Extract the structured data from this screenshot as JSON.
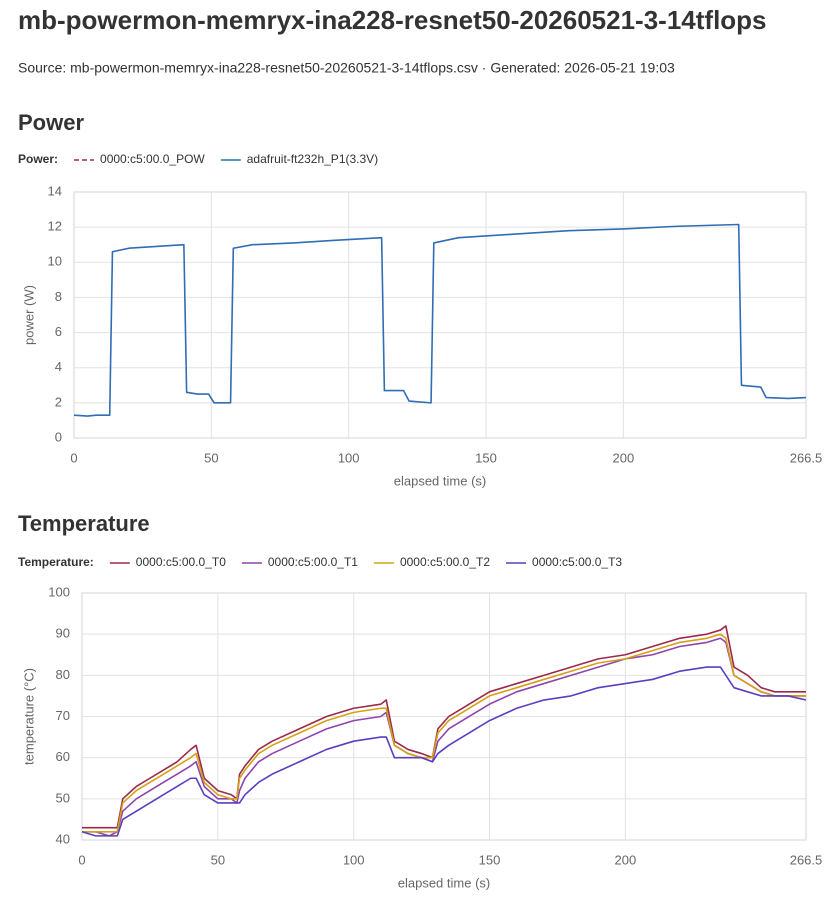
{
  "header": {
    "title": "mb-powermon-memryx-ina228-resnet50-20260521-3-14tflops",
    "source": "Source: mb-powermon-memryx-ina228-resnet50-20260521-3-14tflops.csv · Generated: 2026-05-21 19:03"
  },
  "chart_data": [
    {
      "type": "line",
      "title": "Power",
      "legend_title": "Power:",
      "x_label": "elapsed time (s)",
      "y_label": "power (W)",
      "xlim": [
        0,
        266.5
      ],
      "xticks": [
        0,
        50,
        100,
        150,
        200,
        266.5
      ],
      "ylim": [
        0,
        14
      ],
      "yticks": [
        0,
        2,
        4,
        6,
        8,
        10,
        12,
        14
      ],
      "grid": true,
      "x": [
        0,
        5,
        8,
        13,
        14,
        20,
        30,
        40,
        41,
        45,
        49,
        51,
        57,
        58,
        65,
        80,
        95,
        112,
        113,
        120,
        122,
        130,
        131,
        140,
        160,
        180,
        200,
        220,
        242,
        243,
        250,
        252,
        260,
        266.5
      ],
      "series": [
        {
          "name": "0000:c5:00.0_POW",
          "color": "#9b2a4a",
          "dash": true,
          "values": [
            null,
            null,
            null,
            null,
            null,
            null,
            null,
            null,
            null,
            null,
            null,
            null,
            null,
            null,
            null,
            null,
            null,
            null,
            null,
            null,
            null,
            null,
            null,
            null,
            null,
            null,
            null,
            null,
            null,
            null,
            null,
            null,
            null,
            null
          ]
        },
        {
          "name": "adafruit-ft232h_P1(3.3V)",
          "color": "#2f6db5",
          "dash": false,
          "values": [
            1.3,
            1.25,
            1.3,
            1.3,
            10.6,
            10.8,
            10.9,
            11.0,
            2.6,
            2.5,
            2.5,
            2.0,
            2.0,
            10.8,
            11.0,
            11.1,
            11.25,
            11.4,
            2.7,
            2.7,
            2.1,
            2.0,
            11.1,
            11.4,
            11.6,
            11.8,
            11.9,
            12.05,
            12.15,
            3.0,
            2.9,
            2.3,
            2.25,
            2.3
          ]
        }
      ]
    },
    {
      "type": "line",
      "title": "Temperature",
      "legend_title": "Temperature:",
      "x_label": "elapsed time (s)",
      "y_label": "temperature (°C)",
      "xlim": [
        0,
        266.5
      ],
      "xticks": [
        0,
        50,
        100,
        150,
        200,
        266.5
      ],
      "ylim": [
        40,
        100
      ],
      "yticks": [
        40,
        50,
        60,
        70,
        80,
        90,
        100
      ],
      "grid": true,
      "x": [
        0,
        5,
        10,
        13,
        15,
        20,
        25,
        30,
        35,
        40,
        42,
        45,
        50,
        55,
        57,
        58,
        60,
        65,
        70,
        80,
        90,
        100,
        110,
        112,
        115,
        120,
        125,
        129,
        131,
        135,
        140,
        150,
        160,
        170,
        180,
        190,
        200,
        210,
        220,
        230,
        235,
        237,
        240,
        245,
        250,
        255,
        260,
        266.5
      ],
      "series": [
        {
          "name": "0000:c5:00.0_T0",
          "color": "#9b2a4a",
          "dash": false,
          "values": [
            43,
            43,
            43,
            43,
            50,
            53,
            55,
            57,
            59,
            62,
            63,
            55,
            52,
            51,
            50,
            56,
            58,
            62,
            64,
            67,
            70,
            72,
            73,
            74,
            64,
            62,
            61,
            60,
            67,
            70,
            72,
            76,
            78,
            80,
            82,
            84,
            85,
            87,
            89,
            90,
            91,
            92,
            82,
            80,
            77,
            76,
            76,
            76
          ]
        },
        {
          "name": "0000:c5:00.0_T1",
          "color": "#8e44ad",
          "dash": false,
          "values": [
            42,
            42,
            41,
            42,
            47,
            50,
            52,
            54,
            56,
            58,
            59,
            53,
            50,
            50,
            49,
            52,
            55,
            59,
            61,
            64,
            67,
            69,
            70,
            71,
            63,
            61,
            60,
            59,
            64,
            67,
            69,
            73,
            76,
            78,
            80,
            82,
            84,
            85,
            87,
            88,
            89,
            88,
            80,
            78,
            76,
            75,
            75,
            75
          ]
        },
        {
          "name": "0000:c5:00.0_T2",
          "color": "#d4a017",
          "dash": false,
          "values": [
            42,
            42,
            42,
            42,
            49,
            52,
            54,
            56,
            58,
            60,
            61,
            54,
            51,
            50,
            50,
            55,
            57,
            61,
            63,
            66,
            69,
            71,
            72,
            72,
            63,
            61,
            60,
            60,
            66,
            69,
            71,
            75,
            77,
            79,
            81,
            83,
            84,
            86,
            88,
            89,
            90,
            89,
            80,
            78,
            76,
            75,
            75,
            75
          ]
        },
        {
          "name": "0000:c5:00.0_T3",
          "color": "#5a3fbf",
          "dash": false,
          "values": [
            42,
            41,
            41,
            41,
            45,
            47,
            49,
            51,
            53,
            55,
            55,
            51,
            49,
            49,
            49,
            49,
            51,
            54,
            56,
            59,
            62,
            64,
            65,
            65,
            60,
            60,
            60,
            59,
            61,
            63,
            65,
            69,
            72,
            74,
            75,
            77,
            78,
            79,
            81,
            82,
            82,
            80,
            77,
            76,
            75,
            75,
            75,
            74
          ]
        }
      ]
    }
  ]
}
